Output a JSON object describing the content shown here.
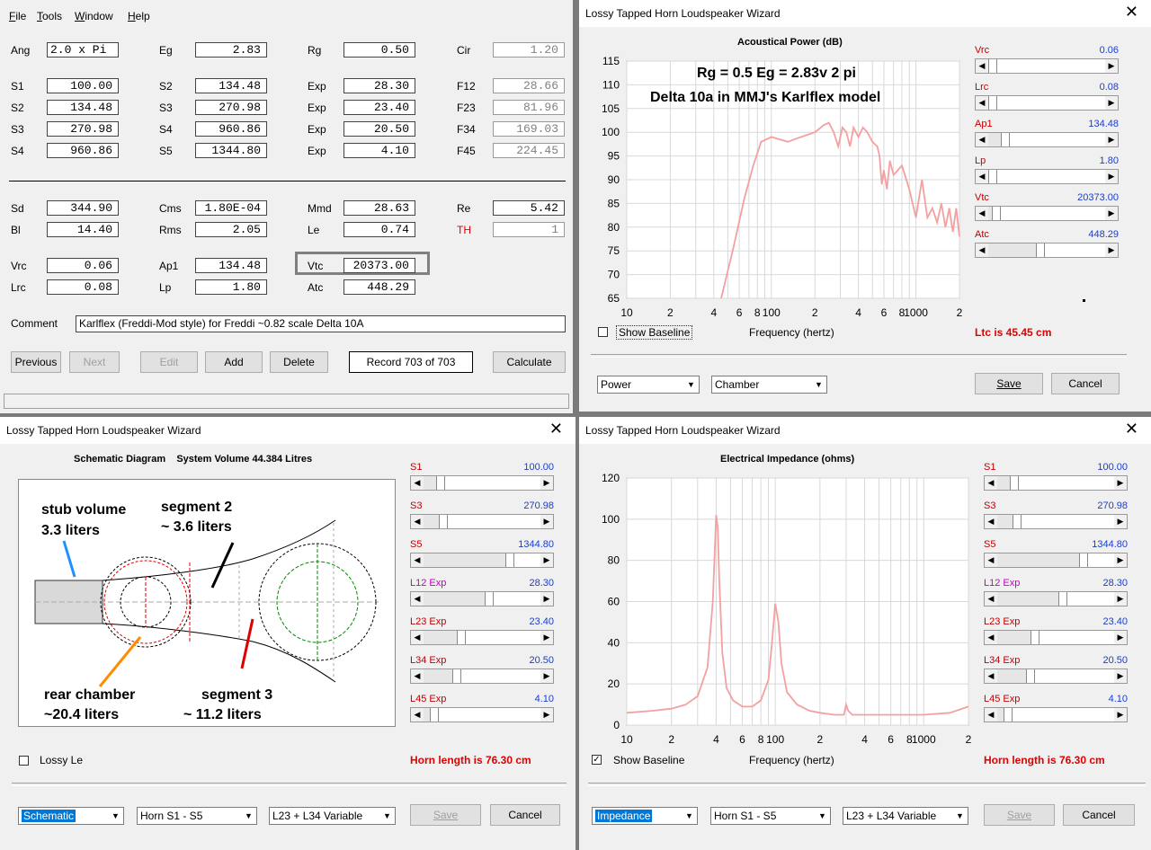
{
  "main": {
    "menu": [
      "File",
      "Tools",
      "Window",
      "Help"
    ],
    "row1": {
      "Ang": "2.0 x Pi",
      "Eg": "2.83",
      "Rg": "0.50",
      "Cir": "1.20"
    },
    "segments": [
      {
        "s": "S1",
        "v": "100.00",
        "s2": "S2",
        "v2": "134.48",
        "exp": "Exp",
        "ev": "28.30",
        "f": "F12",
        "fv": "28.66"
      },
      {
        "s": "S2",
        "v": "134.48",
        "s2": "S3",
        "v2": "270.98",
        "exp": "Exp",
        "ev": "23.40",
        "f": "F23",
        "fv": "81.96"
      },
      {
        "s": "S3",
        "v": "270.98",
        "s2": "S4",
        "v2": "960.86",
        "exp": "Exp",
        "ev": "20.50",
        "f": "F34",
        "fv": "169.03"
      },
      {
        "s": "S4",
        "v": "960.86",
        "s2": "S5",
        "v2": "1344.80",
        "exp": "Exp",
        "ev": "4.10",
        "f": "F45",
        "fv": "224.45"
      }
    ],
    "driver": {
      "Sd": "344.90",
      "Cms": "1.80E-04",
      "Mmd": "28.63",
      "Re": "5.42",
      "Bl": "14.40",
      "Rms": "2.05",
      "Le": "0.74",
      "TH": "1"
    },
    "chamber": {
      "Vrc": "0.06",
      "Ap1": "134.48",
      "Vtc": "20373.00",
      "Lrc": "0.08",
      "Lp": "1.80",
      "Atc": "448.29"
    },
    "comment_label": "Comment",
    "comment": "Karlflex (Freddi-Mod style) for Freddi  ~0.82 scale Delta 10A",
    "buttons": {
      "previous": "Previous",
      "next": "Next",
      "edit": "Edit",
      "add": "Add",
      "delete": "Delete",
      "record": "Record 703 of 703",
      "calculate": "Calculate"
    }
  },
  "wiz_power": {
    "title": "Lossy Tapped Horn Loudspeaker Wizard",
    "chart_title": "Acoustical Power (dB)",
    "annot1": "Rg = 0.5  Eg = 2.83v  2 pi",
    "annot2": "Delta 10a in MMJ's Karlflex model",
    "x_label": "Frequency (hertz)",
    "show_baseline": "Show Baseline",
    "status": "Ltc is 45.45 cm",
    "sliders": [
      {
        "name": "Vrc",
        "value": "0.06",
        "pos": 0.0
      },
      {
        "name": "Lrc",
        "value": "0.08",
        "pos": 0.0
      },
      {
        "name": "Ap1",
        "value": "134.48",
        "pos": 0.12
      },
      {
        "name": "Lp",
        "value": "1.80",
        "pos": 0.0
      },
      {
        "name": "Vtc",
        "value": "20373.00",
        "pos": 0.03
      },
      {
        "name": "Atc",
        "value": "448.29",
        "pos": 0.44
      }
    ],
    "dropdowns": [
      "Power",
      "Chamber"
    ],
    "save": "Save",
    "cancel": "Cancel"
  },
  "wiz_schem": {
    "title": "Lossy Tapped Horn Loudspeaker Wizard",
    "heading": "Schematic Diagram    System Volume 44.384 Litres",
    "ann": {
      "stub1": "stub volume",
      "stub2": "3.3 liters",
      "seg2a": "segment 2",
      "seg2b": "~ 3.6 liters",
      "rear1": "rear chamber",
      "rear2": "~20.4 liters",
      "seg3a": "segment 3",
      "seg3b": "~ 11.2 liters"
    },
    "lossy": "Lossy Le",
    "status": "Horn length is 76.30 cm",
    "sliders": [
      {
        "name": "S1",
        "ext": "",
        "value": "100.00",
        "pos": 0.12
      },
      {
        "name": "S3",
        "ext": "",
        "value": "270.98",
        "pos": 0.14
      },
      {
        "name": "S5",
        "ext": "",
        "value": "1344.80",
        "pos": 0.76
      },
      {
        "name": "L12",
        "ext": "Exp",
        "value": "28.30",
        "pos": 0.57
      },
      {
        "name": "L23",
        "ext": "Exp",
        "value": "23.40",
        "pos": 0.31
      },
      {
        "name": "L34",
        "ext": "Exp",
        "value": "20.50",
        "pos": 0.27
      },
      {
        "name": "L45",
        "ext": "Exp",
        "value": "4.10",
        "pos": 0.06
      }
    ],
    "dropdowns": [
      "Schematic",
      "Horn S1 - S5",
      "L23 + L34 Variable"
    ],
    "save": "Save",
    "cancel": "Cancel"
  },
  "wiz_imp": {
    "title": "Lossy Tapped Horn Loudspeaker Wizard",
    "chart_title": "Electrical Impedance (ohms)",
    "x_label": "Frequency (hertz)",
    "show_baseline": "Show Baseline",
    "status": "Horn length is 76.30 cm",
    "sliders": [
      {
        "name": "S1",
        "ext": "",
        "value": "100.00",
        "pos": 0.12
      },
      {
        "name": "S3",
        "ext": "",
        "value": "270.98",
        "pos": 0.14
      },
      {
        "name": "S5",
        "ext": "",
        "value": "1344.80",
        "pos": 0.76
      },
      {
        "name": "L12",
        "ext": "Exp",
        "value": "28.30",
        "pos": 0.57
      },
      {
        "name": "L23",
        "ext": "Exp",
        "value": "23.40",
        "pos": 0.31
      },
      {
        "name": "L34",
        "ext": "Exp",
        "value": "20.50",
        "pos": 0.27
      },
      {
        "name": "L45",
        "ext": "Exp",
        "value": "4.10",
        "pos": 0.06
      }
    ],
    "dropdowns": [
      "Impedance",
      "Horn S1 - S5",
      "L23 + L34 Variable"
    ],
    "save": "Save",
    "cancel": "Cancel"
  },
  "chart_data": [
    {
      "type": "line",
      "title": "Acoustical Power (dB)",
      "xlabel": "Frequency (hertz)",
      "x_scale": "log",
      "xlim": [
        10,
        2000
      ],
      "ylim": [
        65,
        115
      ],
      "x_tick_labels": [
        "10",
        "2",
        "4",
        "6",
        "8",
        "100",
        "2",
        "4",
        "6",
        "8",
        "1000",
        "2"
      ],
      "y_ticks": [
        65,
        70,
        75,
        80,
        85,
        90,
        95,
        100,
        105,
        110,
        115
      ],
      "color": "#f4a0a0",
      "series": [
        {
          "x": [
            45,
            55,
            65,
            75,
            85,
            100,
            130,
            160,
            200,
            230,
            250,
            270,
            290,
            310,
            330,
            350,
            370,
            400,
            430,
            460,
            500,
            540,
            560,
            580,
            600,
            630,
            660,
            700,
            750,
            800,
            900,
            1000,
            1100,
            1200,
            1300,
            1400,
            1500,
            1600,
            1700,
            1800,
            1900,
            2000
          ],
          "y": [
            65,
            76,
            86,
            93,
            98,
            99,
            98,
            99,
            100,
            101.5,
            102,
            100,
            97,
            101,
            100,
            97,
            101,
            99,
            101,
            100,
            98,
            97,
            95,
            89,
            92,
            88,
            94,
            91,
            92,
            93,
            88,
            82,
            90,
            82,
            84,
            81,
            85,
            80,
            84,
            79,
            84,
            78
          ]
        }
      ]
    },
    {
      "type": "line",
      "title": "Electrical Impedance (ohms)",
      "xlabel": "Frequency (hertz)",
      "x_scale": "log",
      "xlim": [
        10,
        2000
      ],
      "ylim": [
        0,
        120
      ],
      "x_tick_labels": [
        "10",
        "2",
        "4",
        "6",
        "8",
        "100",
        "2",
        "4",
        "6",
        "8",
        "1000",
        "2"
      ],
      "y_ticks": [
        0,
        20,
        40,
        60,
        80,
        100,
        120
      ],
      "color": "#f4a0a0",
      "series": [
        {
          "x": [
            10,
            15,
            20,
            25,
            30,
            35,
            38,
            40,
            41,
            42,
            44,
            47,
            52,
            60,
            70,
            80,
            90,
            95,
            100,
            105,
            110,
            120,
            140,
            170,
            200,
            250,
            290,
            300,
            310,
            330,
            400,
            500,
            700,
            1000,
            1500,
            2000
          ],
          "y": [
            6,
            7,
            8,
            10,
            14,
            28,
            60,
            102,
            96,
            70,
            35,
            18,
            12,
            9,
            9,
            12,
            22,
            40,
            59,
            50,
            30,
            16,
            10,
            7,
            6,
            5,
            5,
            10,
            7,
            5,
            5,
            5,
            5,
            5,
            6,
            9
          ]
        }
      ]
    }
  ]
}
